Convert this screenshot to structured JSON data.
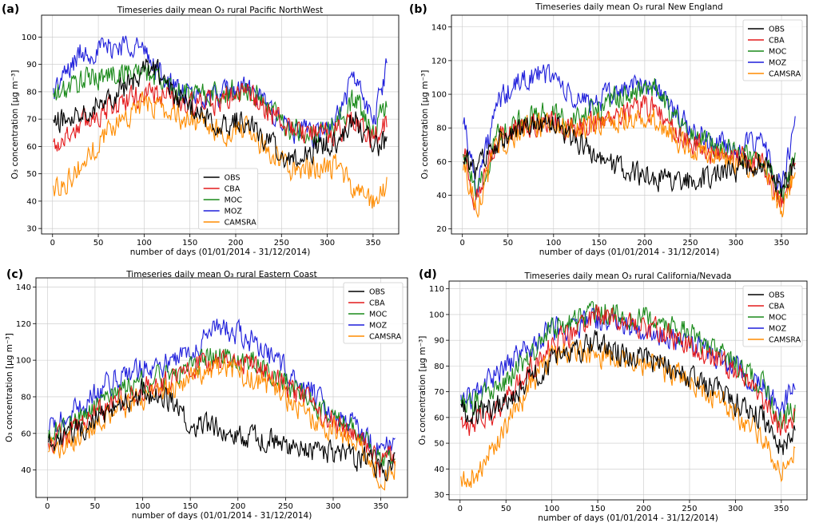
{
  "colors": {
    "OBS": "#000000",
    "CBA": "#e41a1c",
    "MOC": "#1a8a1a",
    "MOZ": "#1f1fdb",
    "CAMSRA": "#ff8c00",
    "grid": "#c8c8c8"
  },
  "chart_data": [
    {
      "type": "line",
      "panel_label": "(a)",
      "title": "Timeseries daily mean O₃  rural Pacific NorthWest",
      "xlabel": "number of days (01/01/2014 - 31/12/2014)",
      "ylabel": "O₃ concentration [μg m⁻³]",
      "xlim": [
        -12,
        378
      ],
      "ylim": [
        28,
        108
      ],
      "xticks": [
        0,
        50,
        100,
        150,
        200,
        250,
        300,
        350
      ],
      "yticks": [
        30,
        40,
        50,
        60,
        70,
        80,
        90,
        100
      ],
      "grid": true,
      "legend_position": "lower-center",
      "series": [
        {
          "name": "OBS",
          "x": [
            1,
            30,
            60,
            90,
            110,
            130,
            150,
            180,
            210,
            240,
            260,
            290,
            310,
            330,
            350,
            365
          ],
          "y": [
            68,
            73,
            78,
            84,
            90,
            80,
            74,
            68,
            70,
            60,
            55,
            60,
            62,
            70,
            60,
            62
          ]
        },
        {
          "name": "CBA",
          "x": [
            1,
            30,
            60,
            90,
            110,
            130,
            150,
            180,
            210,
            240,
            260,
            290,
            310,
            330,
            350,
            365
          ],
          "y": [
            60,
            68,
            74,
            78,
            80,
            77,
            75,
            76,
            80,
            72,
            66,
            64,
            65,
            70,
            62,
            70
          ]
        },
        {
          "name": "MOC",
          "x": [
            1,
            30,
            60,
            90,
            110,
            130,
            150,
            180,
            210,
            240,
            260,
            290,
            310,
            330,
            350,
            365
          ],
          "y": [
            78,
            84,
            86,
            88,
            86,
            82,
            79,
            79,
            81,
            74,
            66,
            65,
            68,
            78,
            64,
            76
          ]
        },
        {
          "name": "MOZ",
          "x": [
            1,
            30,
            60,
            90,
            110,
            130,
            150,
            180,
            210,
            240,
            260,
            290,
            310,
            330,
            350,
            365
          ],
          "y": [
            80,
            94,
            96,
            98,
            90,
            82,
            78,
            78,
            82,
            73,
            66,
            64,
            70,
            86,
            68,
            90
          ]
        },
        {
          "name": "CAMSRA",
          "x": [
            1,
            30,
            60,
            90,
            110,
            130,
            150,
            180,
            210,
            240,
            260,
            290,
            310,
            330,
            350,
            365
          ],
          "y": [
            44,
            52,
            66,
            74,
            76,
            72,
            70,
            65,
            66,
            58,
            52,
            52,
            52,
            44,
            40,
            46
          ]
        }
      ]
    },
    {
      "type": "line",
      "panel_label": "(b)",
      "title": "Timeseries daily mean O₃  rural New England",
      "xlabel": "number of days (01/01/2014 - 31/12/2014)",
      "ylabel": "O₃ concentration [μg m⁻³]",
      "xlim": [
        -12,
        378
      ],
      "ylim": [
        17,
        147
      ],
      "xticks": [
        0,
        50,
        100,
        150,
        200,
        250,
        300,
        350
      ],
      "yticks": [
        20,
        40,
        60,
        80,
        100,
        120,
        140
      ],
      "grid": true,
      "legend_position": "top-right",
      "series": [
        {
          "name": "OBS",
          "x": [
            1,
            15,
            40,
            70,
            100,
            120,
            150,
            180,
            210,
            240,
            270,
            300,
            330,
            350,
            365
          ],
          "y": [
            65,
            55,
            72,
            80,
            82,
            75,
            62,
            55,
            50,
            48,
            50,
            55,
            60,
            45,
            60
          ]
        },
        {
          "name": "CBA",
          "x": [
            1,
            15,
            40,
            70,
            100,
            120,
            150,
            180,
            210,
            240,
            270,
            300,
            330,
            350,
            365
          ],
          "y": [
            68,
            35,
            74,
            82,
            84,
            80,
            84,
            90,
            92,
            74,
            66,
            62,
            58,
            36,
            58
          ]
        },
        {
          "name": "MOC",
          "x": [
            1,
            15,
            40,
            70,
            100,
            120,
            150,
            180,
            210,
            240,
            270,
            300,
            330,
            350,
            365
          ],
          "y": [
            70,
            38,
            78,
            86,
            90,
            84,
            92,
            100,
            104,
            80,
            70,
            66,
            62,
            40,
            62
          ]
        },
        {
          "name": "MOZ",
          "x": [
            1,
            15,
            40,
            70,
            100,
            120,
            150,
            180,
            210,
            240,
            270,
            300,
            330,
            350,
            365
          ],
          "y": [
            88,
            45,
            96,
            110,
            112,
            96,
            96,
            104,
            106,
            84,
            72,
            68,
            70,
            44,
            80
          ]
        },
        {
          "name": "CAMSRA",
          "x": [
            1,
            15,
            40,
            70,
            100,
            120,
            150,
            180,
            210,
            240,
            270,
            300,
            330,
            350,
            365
          ],
          "y": [
            60,
            32,
            70,
            80,
            84,
            78,
            82,
            86,
            86,
            72,
            64,
            60,
            56,
            30,
            56
          ]
        }
      ]
    },
    {
      "type": "line",
      "panel_label": "(c)",
      "title": "Timeseries daily mean O₃  rural Eastern Coast",
      "xlabel": "number of days (01/01/2014 - 31/12/2014)",
      "ylabel": "O₃ concentration [μg m⁻³]",
      "xlim": [
        -12,
        378
      ],
      "ylim": [
        25,
        145
      ],
      "xticks": [
        0,
        50,
        100,
        150,
        200,
        250,
        300,
        350
      ],
      "yticks": [
        40,
        60,
        80,
        100,
        120,
        140
      ],
      "grid": true,
      "legend_position": "top-right",
      "series": [
        {
          "name": "OBS",
          "x": [
            1,
            20,
            50,
            80,
            100,
            130,
            150,
            180,
            210,
            240,
            270,
            300,
            330,
            350,
            365
          ],
          "y": [
            55,
            58,
            68,
            76,
            84,
            78,
            66,
            62,
            58,
            56,
            52,
            50,
            46,
            40,
            44
          ]
        },
        {
          "name": "CBA",
          "x": [
            1,
            20,
            50,
            80,
            100,
            130,
            150,
            180,
            210,
            240,
            270,
            300,
            330,
            350,
            365
          ],
          "y": [
            55,
            60,
            70,
            80,
            85,
            88,
            95,
            100,
            98,
            90,
            78,
            66,
            56,
            42,
            48
          ]
        },
        {
          "name": "MOC",
          "x": [
            1,
            20,
            50,
            80,
            100,
            130,
            150,
            180,
            210,
            240,
            270,
            300,
            330,
            350,
            365
          ],
          "y": [
            58,
            64,
            74,
            84,
            88,
            92,
            98,
            104,
            100,
            92,
            80,
            68,
            58,
            44,
            50
          ]
        },
        {
          "name": "MOZ",
          "x": [
            1,
            20,
            50,
            80,
            100,
            130,
            150,
            180,
            210,
            240,
            270,
            300,
            330,
            350,
            365
          ],
          "y": [
            62,
            68,
            82,
            92,
            96,
            98,
            106,
            118,
            112,
            100,
            86,
            72,
            62,
            48,
            58
          ]
        },
        {
          "name": "CAMSRA",
          "x": [
            1,
            20,
            50,
            80,
            100,
            130,
            150,
            180,
            210,
            240,
            270,
            300,
            330,
            350,
            365
          ],
          "y": [
            50,
            54,
            64,
            74,
            80,
            84,
            90,
            96,
            92,
            84,
            72,
            62,
            52,
            36,
            42
          ]
        }
      ]
    },
    {
      "type": "line",
      "panel_label": "(d)",
      "title": "Timeseries daily mean O₃  rural California/Nevada",
      "xlabel": "number of days (01/01/2014 - 31/12/2014)",
      "ylabel": "O₃ concentration [μg m⁻³]",
      "xlim": [
        -12,
        378
      ],
      "ylim": [
        28,
        113
      ],
      "xticks": [
        0,
        50,
        100,
        150,
        200,
        250,
        300,
        350
      ],
      "yticks": [
        30,
        40,
        50,
        60,
        70,
        80,
        90,
        100,
        110
      ],
      "grid": true,
      "legend_position": "top-right",
      "series": [
        {
          "name": "OBS",
          "x": [
            1,
            20,
            50,
            80,
            100,
            130,
            150,
            180,
            210,
            240,
            270,
            300,
            330,
            350,
            365
          ],
          "y": [
            62,
            62,
            66,
            76,
            82,
            86,
            90,
            84,
            82,
            78,
            72,
            66,
            60,
            48,
            56
          ]
        },
        {
          "name": "CBA",
          "x": [
            1,
            20,
            50,
            80,
            100,
            130,
            150,
            180,
            210,
            240,
            270,
            300,
            330,
            350,
            365
          ],
          "y": [
            56,
            58,
            66,
            80,
            88,
            94,
            100,
            96,
            94,
            90,
            84,
            78,
            68,
            56,
            60
          ]
        },
        {
          "name": "MOC",
          "x": [
            1,
            20,
            50,
            80,
            100,
            130,
            150,
            180,
            210,
            240,
            270,
            300,
            330,
            350,
            365
          ],
          "y": [
            64,
            66,
            74,
            86,
            94,
            98,
            102,
            100,
            98,
            94,
            88,
            80,
            72,
            58,
            64
          ]
        },
        {
          "name": "MOZ",
          "x": [
            1,
            20,
            50,
            80,
            100,
            130,
            150,
            180,
            210,
            240,
            270,
            300,
            330,
            350,
            365
          ],
          "y": [
            66,
            70,
            80,
            88,
            94,
            96,
            98,
            96,
            94,
            90,
            86,
            80,
            72,
            62,
            76
          ]
        },
        {
          "name": "CAMSRA",
          "x": [
            1,
            20,
            50,
            80,
            100,
            130,
            150,
            180,
            210,
            240,
            270,
            300,
            330,
            350,
            365
          ],
          "y": [
            34,
            40,
            56,
            74,
            84,
            86,
            84,
            82,
            80,
            76,
            70,
            62,
            52,
            40,
            48
          ]
        }
      ]
    }
  ]
}
